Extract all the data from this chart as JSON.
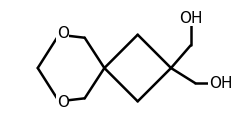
{
  "background_color": "#ffffff",
  "line_color": "#000000",
  "line_width": 1.8,
  "font_size": 11,
  "OH_label": "OH",
  "O_label": "O"
}
